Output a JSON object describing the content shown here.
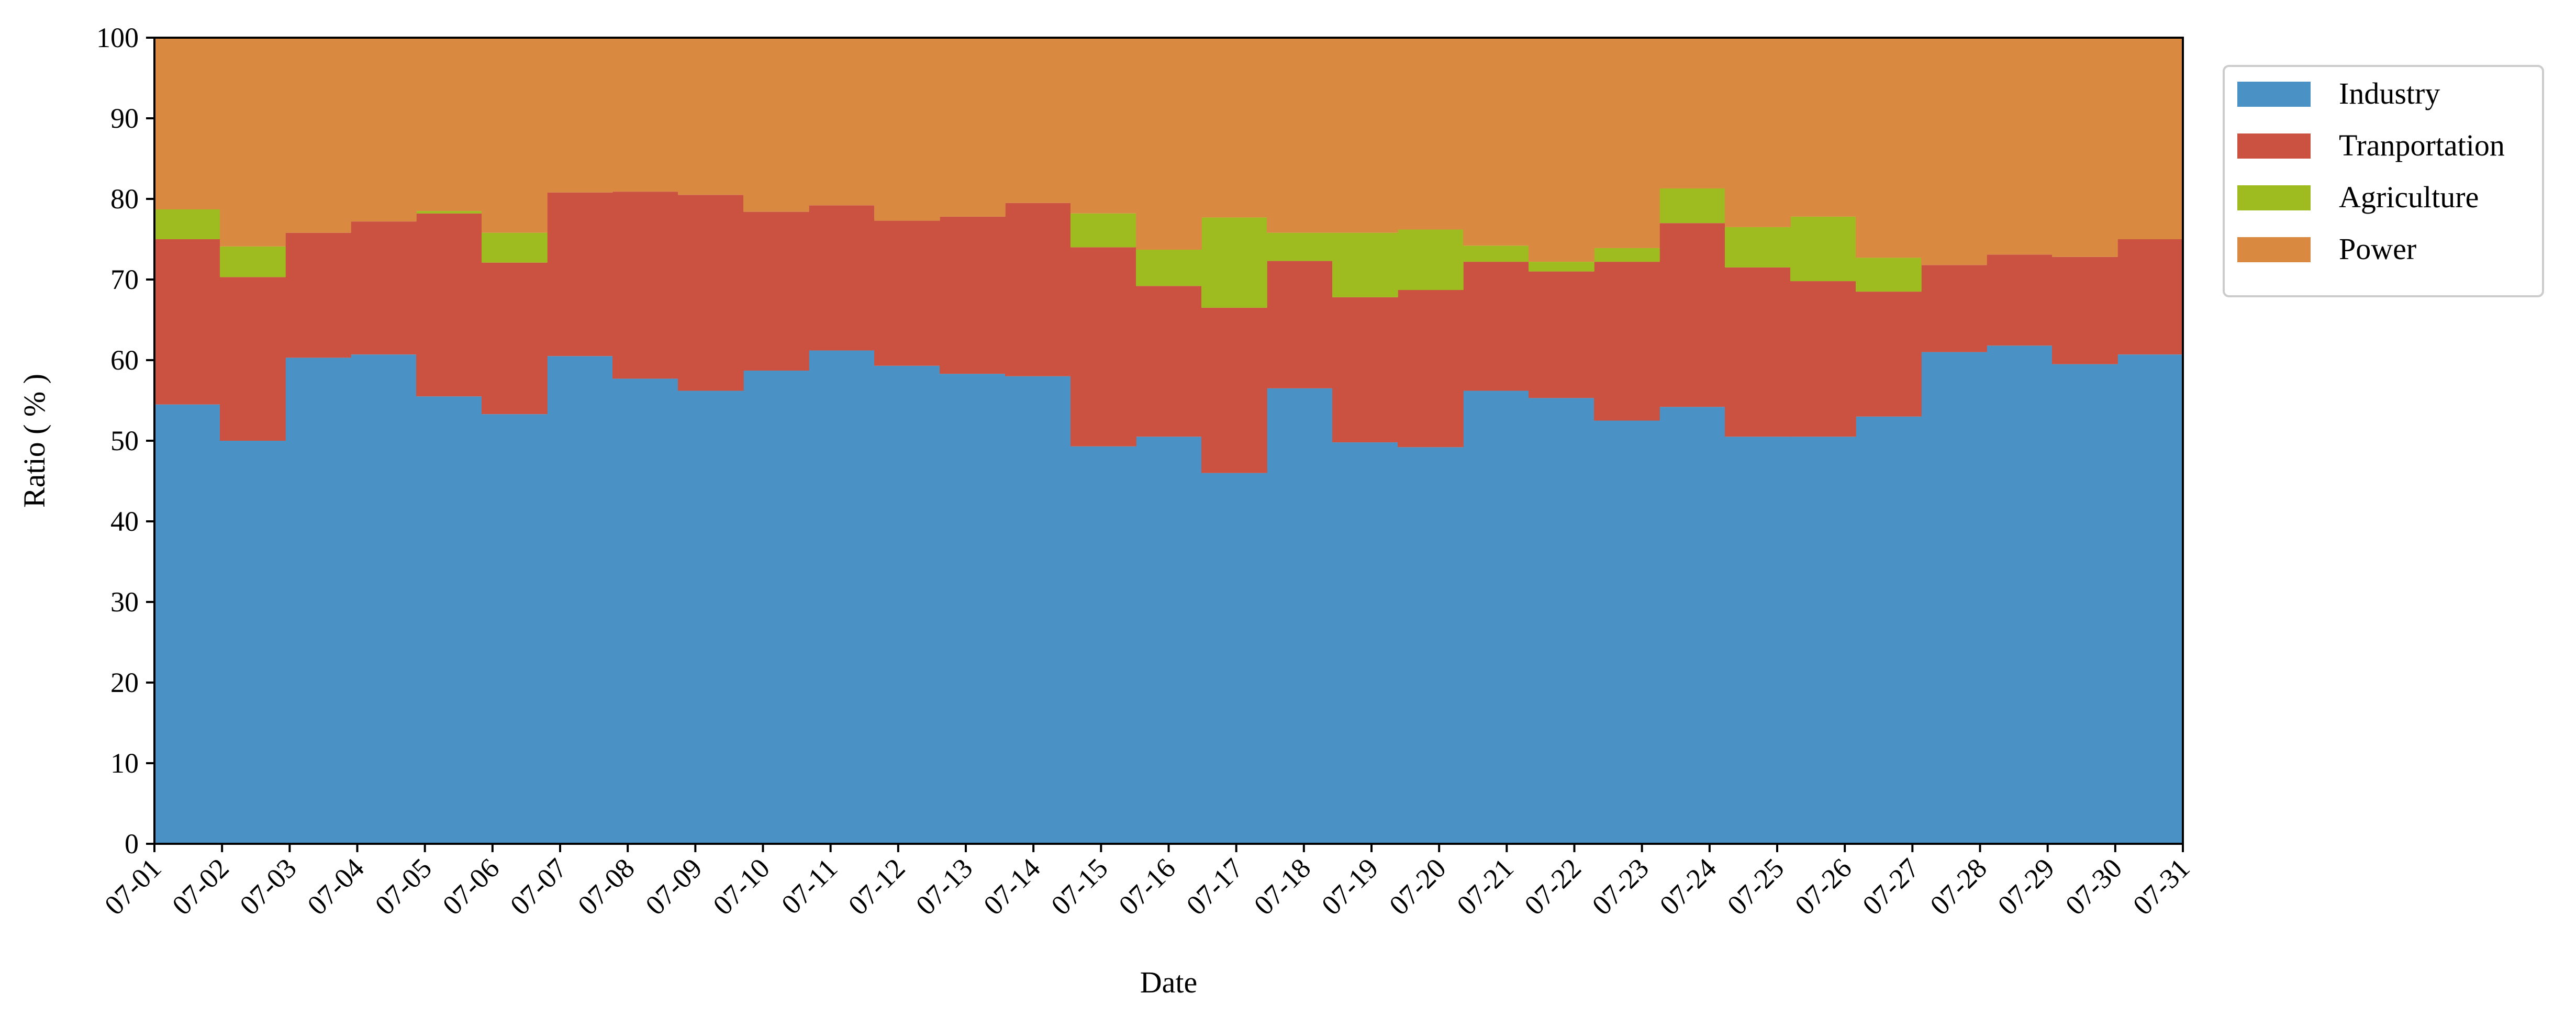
{
  "chart_data": {
    "type": "area",
    "stacked": true,
    "step": true,
    "xlabel": "Date",
    "ylabel": "Ratio ( % )",
    "ylim": [
      0,
      100
    ],
    "yticks": [
      0,
      10,
      20,
      30,
      40,
      50,
      60,
      70,
      80,
      90,
      100
    ],
    "grid": false,
    "legend_position": "top-right, outside plot",
    "x": [
      "07-01",
      "07-02",
      "07-03",
      "07-04",
      "07-05",
      "07-06",
      "07-07",
      "07-08",
      "07-09",
      "07-10",
      "07-11",
      "07-12",
      "07-13",
      "07-14",
      "07-15",
      "07-16",
      "07-17",
      "07-18",
      "07-19",
      "07-20",
      "07-21",
      "07-22",
      "07-23",
      "07-24",
      "07-25",
      "07-26",
      "07-27",
      "07-28",
      "07-29",
      "07-30",
      "07-31"
    ],
    "series": [
      {
        "name": "Industry",
        "color": "#4a92c5",
        "values": [
          54.5,
          50.0,
          60.3,
          60.7,
          55.5,
          53.3,
          60.5,
          57.7,
          56.2,
          58.7,
          61.2,
          59.3,
          58.3,
          58.0,
          49.3,
          50.5,
          46.0,
          56.5,
          49.8,
          49.2,
          56.2,
          55.3,
          52.5,
          54.2,
          50.5,
          50.5,
          53.0,
          61.0,
          61.8,
          59.5,
          60.7
        ]
      },
      {
        "name": "Tranportation",
        "color": "#cb5140",
        "values": [
          20.5,
          20.3,
          15.5,
          16.5,
          22.7,
          18.8,
          20.3,
          23.2,
          24.3,
          19.7,
          18.0,
          18.0,
          19.5,
          21.5,
          24.7,
          18.7,
          20.5,
          15.8,
          18.0,
          19.5,
          16.0,
          15.7,
          19.7,
          22.8,
          21.0,
          19.3,
          15.5,
          10.8,
          11.3,
          13.3,
          14.3
        ]
      },
      {
        "name": "Agriculture",
        "color": "#9ebc1f",
        "values": [
          3.7,
          3.8,
          0.0,
          0.0,
          0.3,
          3.7,
          0.0,
          0.0,
          0.0,
          0.0,
          0.0,
          0.0,
          0.0,
          0.0,
          4.2,
          4.5,
          11.2,
          3.5,
          8.0,
          7.5,
          2.0,
          1.2,
          1.7,
          4.3,
          5.0,
          8.0,
          4.2,
          0.0,
          0.0,
          0.0,
          0.0
        ]
      },
      {
        "name": "Power",
        "color": "#d98a40",
        "values": [
          21.3,
          25.9,
          24.2,
          22.8,
          21.5,
          24.2,
          19.2,
          19.1,
          19.5,
          21.6,
          20.8,
          22.7,
          22.2,
          20.5,
          21.8,
          26.3,
          22.3,
          24.2,
          24.2,
          23.8,
          25.8,
          27.8,
          26.1,
          18.7,
          23.5,
          22.2,
          27.3,
          28.2,
          26.9,
          27.2,
          25.0
        ]
      }
    ]
  }
}
